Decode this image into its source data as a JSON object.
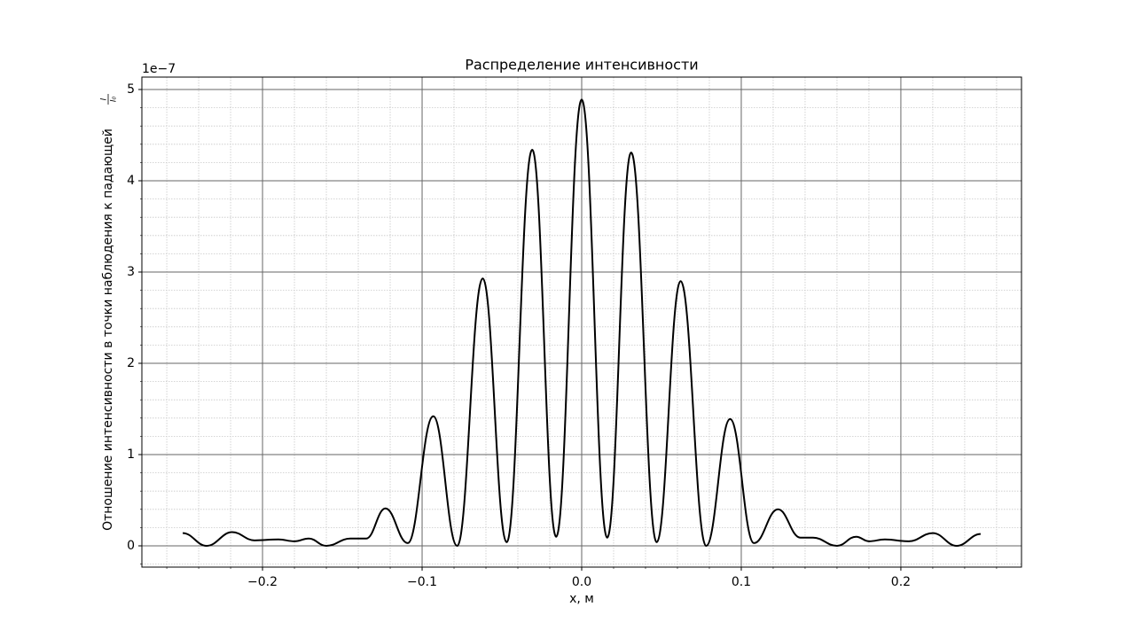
{
  "chart_data": {
    "type": "line",
    "title": "Распределение интенсивности",
    "xlabel": "x, м",
    "ylabel": "Отношение интенсивности в точки наблюдения к падающей",
    "ylabel_fraction": {
      "numerator": "I",
      "denominator": "I₀"
    },
    "y_offset_label": "1e−7",
    "x": [
      -0.25,
      -0.235,
      -0.219,
      -0.205,
      -0.19,
      -0.18,
      -0.171,
      -0.16,
      -0.145,
      -0.135,
      -0.123,
      -0.109,
      -0.093,
      -0.078,
      -0.062,
      -0.047,
      -0.031,
      -0.016,
      0.0,
      0.016,
      0.031,
      0.047,
      0.062,
      0.078,
      0.093,
      0.108,
      0.123,
      0.137,
      0.145,
      0.16,
      0.172,
      0.18,
      0.19,
      0.205,
      0.22,
      0.235,
      0.25
    ],
    "series": [
      {
        "name": "I/I0",
        "color": "#000000",
        "values": [
          0.14,
          0.0,
          0.15,
          0.06,
          0.07,
          0.05,
          0.08,
          0.0,
          0.08,
          0.08,
          0.41,
          0.03,
          1.42,
          0.0,
          2.93,
          0.04,
          4.34,
          0.1,
          4.89,
          0.09,
          4.31,
          0.04,
          2.9,
          0.0,
          1.39,
          0.03,
          0.4,
          0.09,
          0.09,
          0.0,
          0.1,
          0.05,
          0.07,
          0.05,
          0.14,
          0.0,
          0.13
        ]
      }
    ],
    "xlim": [
      -0.2756,
      0.2756
    ],
    "ylim": [
      -0.233,
      5.136
    ],
    "xticks": [
      {
        "value": -0.2,
        "label": "−0.2"
      },
      {
        "value": -0.1,
        "label": "−0.1"
      },
      {
        "value": 0.0,
        "label": "0.0"
      },
      0.1,
      0.2
    ],
    "yticks": [
      0,
      1,
      2,
      3,
      4,
      5
    ],
    "grid": true,
    "minor_grid": true
  }
}
